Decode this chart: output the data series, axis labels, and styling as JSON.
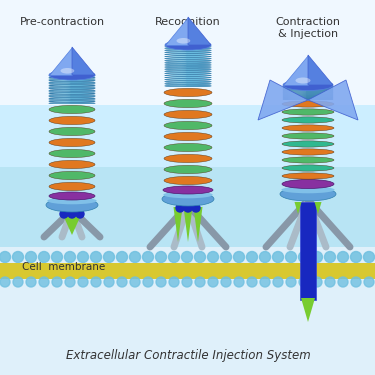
{
  "title": "Extracellular Contractile Injection System",
  "labels": [
    "Pre-contraction",
    "Recognition",
    "Contraction\n& Injection"
  ],
  "bg_top": "#e8f5fc",
  "bg_mid": "#cceeff",
  "tube_blue": "#6bbde0",
  "tube_blue_dark": "#3a8ab8",
  "tube_blue_edge": "#2a70a0",
  "ring_orange": "#e07820",
  "ring_green": "#50b868",
  "ring_teal": "#30b890",
  "cap_blue": "#4060d0",
  "cap_light": "#80a8f0",
  "cap_mid": "#5580e0",
  "leg_color": "#8898a8",
  "leg_color2": "#aabbc8",
  "spike_green": "#78cc30",
  "purple_base": "#8830a0",
  "blue_tube": "#1828c0",
  "blue_tube2": "#3848d8",
  "base_blue": "#60a0d8",
  "membrane_sphere": "#70c0e0",
  "membrane_yellow": "#d8c830",
  "fig_bg": "#f5fbff",
  "cell_label": "Cell  membrane"
}
